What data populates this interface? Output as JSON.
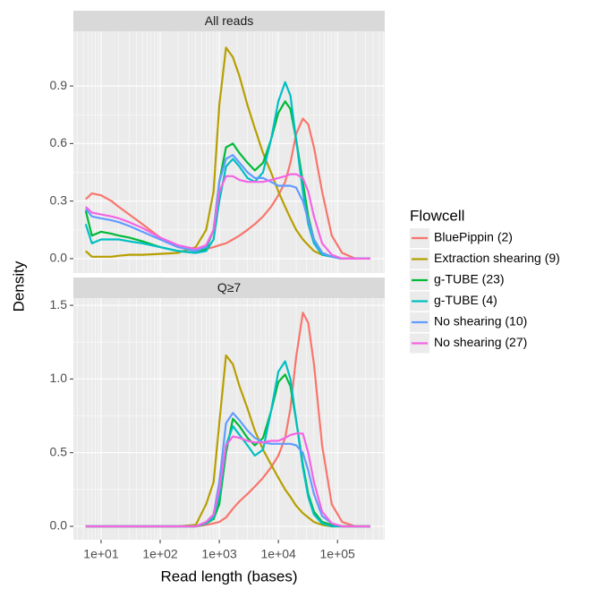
{
  "chart_data": {
    "type": "line",
    "xlabel": "Read length (bases)",
    "ylabel": "Density",
    "legend_title": "Flowcell",
    "legend": "right",
    "log_x": true,
    "grid": true,
    "x": [
      5.5,
      7,
      10,
      15,
      20,
      30,
      50,
      100,
      200,
      400,
      600,
      800,
      1000,
      1300,
      1700,
      2200,
      3000,
      4000,
      5500,
      7500,
      10000,
      13000,
      16000,
      20000,
      26000,
      32000,
      40000,
      55000,
      80000,
      120000,
      200000,
      360000
    ],
    "xlim": [
      3.4,
      630000
    ],
    "xticks": [
      {
        "value": 10,
        "label": "1e+01"
      },
      {
        "value": 100,
        "label": "1e+02"
      },
      {
        "value": 1000,
        "label": "1e+03"
      },
      {
        "value": 10000,
        "label": "1e+04"
      },
      {
        "value": 100000,
        "label": "1e+05"
      }
    ],
    "panels": [
      {
        "title": "All reads",
        "ylim": [
          -0.075,
          1.185
        ],
        "yticks": [
          {
            "value": 0,
            "label": "0.0"
          },
          0.3,
          0.6,
          0.9
        ]
      },
      {
        "title": "Q≥7",
        "ylim": [
          -0.091,
          1.549
        ],
        "yticks": [
          {
            "value": 0,
            "label": "0.0"
          },
          0.5,
          {
            "value": 1,
            "label": "1.0"
          },
          1.5
        ]
      }
    ],
    "series": [
      {
        "name": "BluePippin (2)",
        "color": "#F8766D",
        "values": [
          [
            0.31,
            0.34,
            0.33,
            0.3,
            0.27,
            0.23,
            0.18,
            0.11,
            0.06,
            0.04,
            0.05,
            0.06,
            0.07,
            0.08,
            0.1,
            0.12,
            0.15,
            0.18,
            0.22,
            0.27,
            0.33,
            0.4,
            0.5,
            0.65,
            0.73,
            0.7,
            0.58,
            0.35,
            0.12,
            0.03,
            0,
            0
          ],
          [
            0,
            0,
            0,
            0,
            0,
            0,
            0,
            0,
            0,
            0,
            0.01,
            0.02,
            0.03,
            0.06,
            0.12,
            0.17,
            0.22,
            0.27,
            0.33,
            0.4,
            0.48,
            0.6,
            0.8,
            1.15,
            1.45,
            1.38,
            1.1,
            0.55,
            0.15,
            0.03,
            0,
            0
          ]
        ]
      },
      {
        "name": "Extraction shearing (9)",
        "color": "#B79F00",
        "values": [
          [
            0.04,
            0.01,
            0.01,
            0.01,
            0.015,
            0.02,
            0.02,
            0.025,
            0.03,
            0.06,
            0.15,
            0.35,
            0.8,
            1.1,
            1.05,
            0.95,
            0.8,
            0.68,
            0.55,
            0.45,
            0.35,
            0.27,
            0.21,
            0.15,
            0.1,
            0.07,
            0.04,
            0.02,
            0.01,
            0,
            0,
            0
          ],
          [
            0,
            0,
            0,
            0,
            0,
            0,
            0,
            0,
            0,
            0.01,
            0.15,
            0.3,
            0.7,
            1.16,
            1.1,
            0.95,
            0.8,
            0.65,
            0.52,
            0.42,
            0.33,
            0.25,
            0.2,
            0.14,
            0.09,
            0.06,
            0.03,
            0.01,
            0,
            0,
            0,
            0
          ]
        ]
      },
      {
        "name": "g-TUBE (23)",
        "color": "#00BA38",
        "values": [
          [
            0.25,
            0.12,
            0.14,
            0.13,
            0.12,
            0.11,
            0.09,
            0.06,
            0.04,
            0.03,
            0.05,
            0.15,
            0.4,
            0.58,
            0.6,
            0.55,
            0.5,
            0.46,
            0.5,
            0.62,
            0.76,
            0.82,
            0.78,
            0.62,
            0.4,
            0.22,
            0.1,
            0.03,
            0.01,
            0,
            0,
            0
          ],
          [
            0,
            0,
            0,
            0,
            0,
            0,
            0,
            0,
            0,
            0,
            0.02,
            0.05,
            0.15,
            0.5,
            0.73,
            0.68,
            0.6,
            0.55,
            0.6,
            0.78,
            0.98,
            1.03,
            0.95,
            0.72,
            0.42,
            0.22,
            0.1,
            0.03,
            0.01,
            0,
            0,
            0
          ]
        ]
      },
      {
        "name": "g-TUBE (4)",
        "color": "#00BFC4",
        "values": [
          [
            0.18,
            0.08,
            0.1,
            0.1,
            0.1,
            0.09,
            0.08,
            0.06,
            0.04,
            0.03,
            0.04,
            0.1,
            0.3,
            0.48,
            0.52,
            0.48,
            0.42,
            0.4,
            0.45,
            0.62,
            0.82,
            0.92,
            0.85,
            0.62,
            0.35,
            0.18,
            0.08,
            0.02,
            0.01,
            0,
            0,
            0
          ],
          [
            0,
            0,
            0,
            0,
            0,
            0,
            0,
            0,
            0,
            0,
            0.02,
            0.06,
            0.2,
            0.55,
            0.68,
            0.62,
            0.55,
            0.48,
            0.52,
            0.78,
            1.05,
            1.12,
            1.0,
            0.72,
            0.4,
            0.2,
            0.08,
            0.02,
            0,
            0,
            0,
            0
          ]
        ]
      },
      {
        "name": "No shearing (10)",
        "color": "#619CFF",
        "values": [
          [
            0.26,
            0.22,
            0.21,
            0.2,
            0.19,
            0.17,
            0.14,
            0.1,
            0.06,
            0.04,
            0.06,
            0.15,
            0.4,
            0.52,
            0.54,
            0.5,
            0.45,
            0.42,
            0.42,
            0.4,
            0.38,
            0.38,
            0.38,
            0.37,
            0.3,
            0.2,
            0.1,
            0.03,
            0.01,
            0,
            0,
            0
          ],
          [
            0,
            0,
            0,
            0,
            0,
            0,
            0,
            0,
            0,
            0,
            0.03,
            0.08,
            0.3,
            0.7,
            0.77,
            0.72,
            0.65,
            0.6,
            0.57,
            0.56,
            0.56,
            0.56,
            0.56,
            0.55,
            0.5,
            0.38,
            0.22,
            0.07,
            0.02,
            0,
            0,
            0
          ]
        ]
      },
      {
        "name": "No shearing (27)",
        "color": "#F564E3",
        "values": [
          [
            0.27,
            0.24,
            0.23,
            0.22,
            0.21,
            0.19,
            0.16,
            0.11,
            0.07,
            0.05,
            0.07,
            0.15,
            0.35,
            0.43,
            0.43,
            0.41,
            0.4,
            0.4,
            0.4,
            0.41,
            0.42,
            0.43,
            0.44,
            0.44,
            0.42,
            0.35,
            0.22,
            0.08,
            0.02,
            0,
            0,
            0
          ],
          [
            0,
            0,
            0,
            0,
            0,
            0,
            0,
            0,
            0,
            0,
            0.03,
            0.08,
            0.25,
            0.55,
            0.61,
            0.6,
            0.58,
            0.57,
            0.57,
            0.58,
            0.58,
            0.6,
            0.62,
            0.63,
            0.63,
            0.5,
            0.3,
            0.1,
            0.02,
            0,
            0,
            0
          ]
        ]
      }
    ]
  }
}
